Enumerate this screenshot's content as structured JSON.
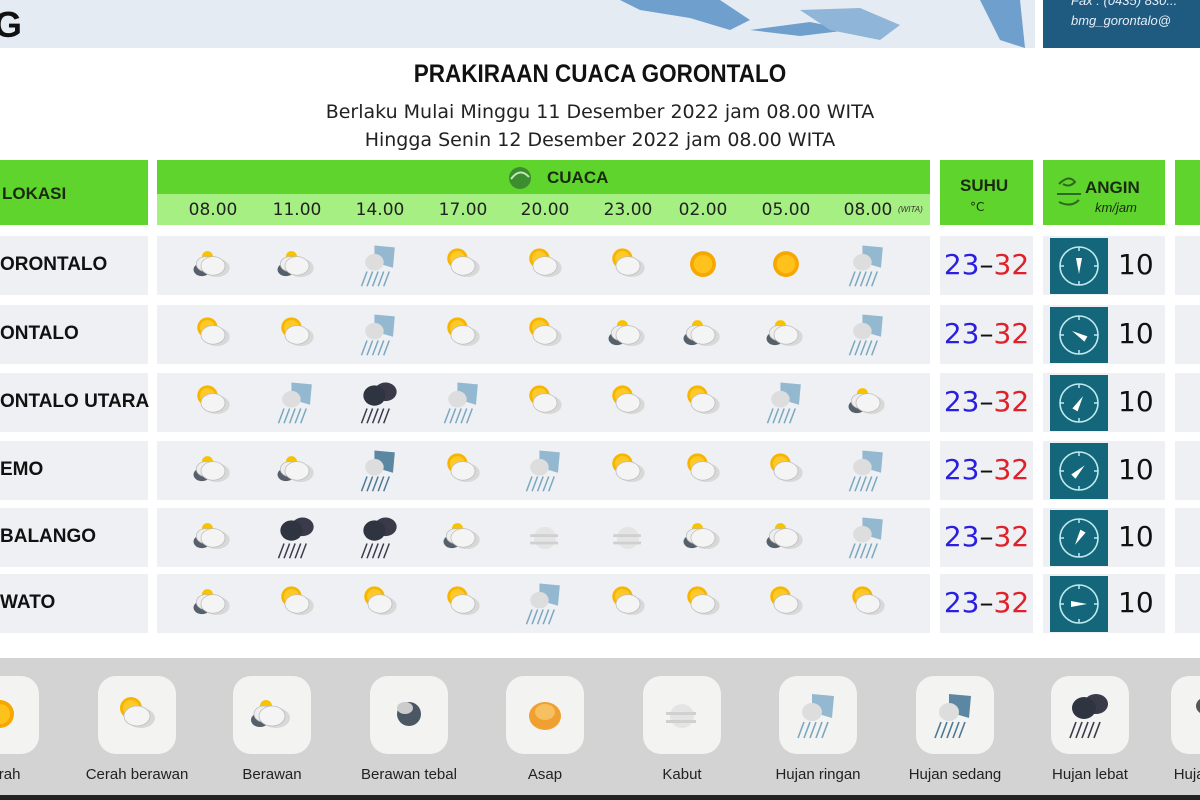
{
  "header": {
    "logo_letter": "G",
    "fax": "Fax : (0435) 830...",
    "email": "bmg_gorontalo@"
  },
  "title": "PRAKIRAAN CUACA GORONTALO",
  "subtitle_1": "Berlaku Mulai Minggu 11 Desember 2022 jam 08.00 WITA",
  "subtitle_2": "Hingga Senin 12 Desember 2022 jam 08.00 WITA",
  "table": {
    "col_lokasi": "LOKASI",
    "col_cuaca": "CUACA",
    "col_suhu": "SUHU",
    "col_suhu_unit": "°C",
    "col_angin": "ANGIN",
    "col_angin_unit": "km/jam",
    "times": [
      "08.00",
      "11.00",
      "14.00",
      "17.00",
      "20.00",
      "23.00",
      "02.00",
      "05.00",
      "08.00"
    ],
    "time_suffix": "(WITA)",
    "rows": [
      {
        "location": "ORONTALO",
        "weather": [
          "berawan",
          "berawan",
          "hujan-ringan",
          "cerah-berawan",
          "cerah-berawan",
          "cerah-berawan",
          "cerah",
          "cerah",
          "hujan-ringan"
        ],
        "tmin": "23",
        "tmax": "32",
        "wind": "10",
        "wind_dir_deg": 180
      },
      {
        "location": "ONTALO",
        "weather": [
          "cerah-berawan",
          "cerah-berawan",
          "hujan-ringan",
          "cerah-berawan",
          "cerah-berawan",
          "berawan",
          "berawan",
          "berawan",
          "hujan-ringan"
        ],
        "tmin": "23",
        "tmax": "32",
        "wind": "10",
        "wind_dir_deg": 300
      },
      {
        "location": "ONTALO UTARA",
        "weather": [
          "cerah-berawan",
          "hujan-ringan",
          "hujan-lebat",
          "hujan-ringan",
          "cerah-berawan",
          "cerah-berawan",
          "cerah-berawan",
          "hujan-ringan",
          "berawan"
        ],
        "tmin": "23",
        "tmax": "32",
        "wind": "10",
        "wind_dir_deg": 30
      },
      {
        "location": "EMO",
        "weather": [
          "berawan",
          "berawan",
          "hujan-sedang",
          "cerah-berawan",
          "hujan-ringan",
          "cerah-berawan",
          "cerah-berawan",
          "cerah-berawan",
          "hujan-ringan"
        ],
        "tmin": "23",
        "tmax": "32",
        "wind": "10",
        "wind_dir_deg": 45
      },
      {
        "location": "BALANGO",
        "weather": [
          "berawan",
          "hujan-lebat",
          "hujan-lebat",
          "berawan",
          "kabut",
          "kabut",
          "berawan",
          "berawan",
          "hujan-ringan"
        ],
        "tmin": "23",
        "tmax": "32",
        "wind": "10",
        "wind_dir_deg": 210
      },
      {
        "location": "WATO",
        "weather": [
          "berawan",
          "cerah-berawan",
          "cerah-berawan",
          "cerah-berawan",
          "hujan-ringan",
          "cerah-berawan",
          "cerah-berawan",
          "cerah-berawan",
          "cerah-berawan"
        ],
        "tmin": "23",
        "tmax": "32",
        "wind": "10",
        "wind_dir_deg": 90
      }
    ]
  },
  "legend": [
    {
      "type": "cerah",
      "label": "Cerah"
    },
    {
      "type": "cerah-berawan",
      "label": "Cerah berawan"
    },
    {
      "type": "berawan",
      "label": "Berawan"
    },
    {
      "type": "berawan-tebal",
      "label": "Berawan tebal"
    },
    {
      "type": "asap",
      "label": "Asap"
    },
    {
      "type": "kabut",
      "label": "Kabut"
    },
    {
      "type": "hujan-ringan",
      "label": "Hujan ringan"
    },
    {
      "type": "hujan-sedang",
      "label": "Hujan sedang"
    },
    {
      "type": "hujan-lebat",
      "label": "Hujan lebat"
    },
    {
      "type": "hujan-petir",
      "label": "Hujan petir"
    }
  ],
  "colors": {
    "header_green": "#5ed42c",
    "time_green": "#a5ef83",
    "wind_box": "#14677a",
    "tmin": "#2a1ee0",
    "tmax": "#e0202a"
  }
}
